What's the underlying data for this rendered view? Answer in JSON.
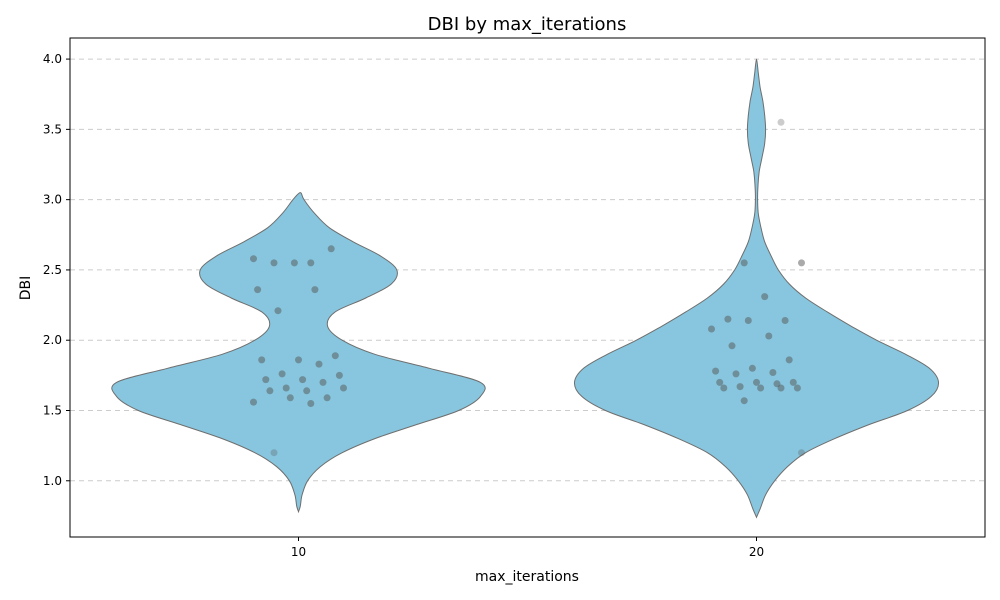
{
  "chart_data": {
    "type": "violin",
    "title": "DBI by max_iterations",
    "xlabel": "max_iterations",
    "ylabel": "DBI",
    "categories": [
      "10",
      "20"
    ],
    "ylim": [
      0.6,
      4.15
    ],
    "yticks": [
      "1.0",
      "1.5",
      "2.0",
      "2.5",
      "3.0",
      "3.5",
      "4.0"
    ],
    "grid": "y-dashed",
    "violin_color": "#87c6de",
    "violin_edge_color": "#6e6e6e",
    "point_color": "#555555",
    "groups": [
      {
        "category": "10",
        "values": [
          2.58,
          2.55,
          2.55,
          2.65,
          2.55,
          2.36,
          2.36,
          2.21,
          1.89,
          1.86,
          1.86,
          1.83,
          1.76,
          1.75,
          1.72,
          1.72,
          1.7,
          1.66,
          1.66,
          1.64,
          1.64,
          1.59,
          1.59,
          1.56,
          1.55,
          1.2
        ],
        "density": [
          [
            0.78,
            0.0
          ],
          [
            0.82,
            0.01
          ],
          [
            0.9,
            0.02
          ],
          [
            1.0,
            0.05
          ],
          [
            1.1,
            0.12
          ],
          [
            1.2,
            0.24
          ],
          [
            1.3,
            0.42
          ],
          [
            1.4,
            0.65
          ],
          [
            1.5,
            0.88
          ],
          [
            1.6,
            1.0
          ],
          [
            1.7,
            1.0
          ],
          [
            1.8,
            0.72
          ],
          [
            1.9,
            0.42
          ],
          [
            2.0,
            0.24
          ],
          [
            2.1,
            0.16
          ],
          [
            2.2,
            0.2
          ],
          [
            2.3,
            0.37
          ],
          [
            2.4,
            0.51
          ],
          [
            2.5,
            0.54
          ],
          [
            2.6,
            0.45
          ],
          [
            2.7,
            0.3
          ],
          [
            2.8,
            0.17
          ],
          [
            2.9,
            0.09
          ],
          [
            3.0,
            0.03
          ],
          [
            3.05,
            0.01
          ]
        ]
      },
      {
        "category": "20",
        "values": [
          3.55,
          2.55,
          2.55,
          2.31,
          2.15,
          2.14,
          2.14,
          2.08,
          2.03,
          1.96,
          1.86,
          1.8,
          1.78,
          1.77,
          1.76,
          1.7,
          1.7,
          1.7,
          1.69,
          1.67,
          1.66,
          1.66,
          1.66,
          1.66,
          1.57,
          1.2
        ],
        "density": [
          [
            0.74,
            0.0
          ],
          [
            0.8,
            0.02
          ],
          [
            0.9,
            0.05
          ],
          [
            1.0,
            0.1
          ],
          [
            1.1,
            0.17
          ],
          [
            1.2,
            0.27
          ],
          [
            1.3,
            0.43
          ],
          [
            1.4,
            0.62
          ],
          [
            1.5,
            0.83
          ],
          [
            1.6,
            0.96
          ],
          [
            1.7,
            1.0
          ],
          [
            1.8,
            0.95
          ],
          [
            1.9,
            0.82
          ],
          [
            2.0,
            0.66
          ],
          [
            2.1,
            0.52
          ],
          [
            2.2,
            0.39
          ],
          [
            2.3,
            0.27
          ],
          [
            2.4,
            0.18
          ],
          [
            2.5,
            0.12
          ],
          [
            2.6,
            0.08
          ],
          [
            2.7,
            0.045
          ],
          [
            2.8,
            0.025
          ],
          [
            2.9,
            0.01
          ],
          [
            3.0,
            0.006
          ],
          [
            3.1,
            0.008
          ],
          [
            3.2,
            0.015
          ],
          [
            3.3,
            0.03
          ],
          [
            3.4,
            0.045
          ],
          [
            3.5,
            0.05
          ],
          [
            3.6,
            0.045
          ],
          [
            3.7,
            0.035
          ],
          [
            3.8,
            0.02
          ],
          [
            3.9,
            0.01
          ],
          [
            4.0,
            0.0
          ]
        ]
      }
    ]
  }
}
